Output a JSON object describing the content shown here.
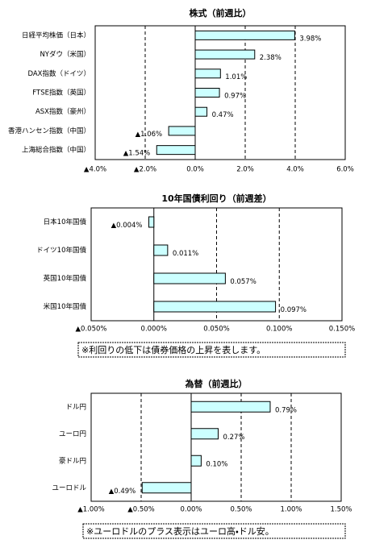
{
  "chart_data": [
    {
      "type": "hbar",
      "title": "株式（前週比）",
      "categories": [
        "日経平均株価（日本）",
        "NYダウ（米国）",
        "DAX指数（ドイツ）",
        "FTSE指数（英国）",
        "ASX指数（豪州）",
        "香港ハンセン指数（中国）",
        "上海総合指数（中国）"
      ],
      "values": [
        3.98,
        2.38,
        1.01,
        0.97,
        0.47,
        -1.06,
        -1.54
      ],
      "value_labels": [
        "3.98%",
        "2.38%",
        "1.01%",
        "0.97%",
        "0.47%",
        "▲1.06%",
        "▲1.54%"
      ],
      "xlim": [
        -4,
        6
      ],
      "xticks": [
        {
          "value": -4,
          "label": "▲4.0%"
        },
        {
          "value": -2,
          "label": "▲2.0%"
        },
        {
          "value": 0,
          "label": "0.0%"
        },
        {
          "value": 2,
          "label": "2.0%"
        },
        {
          "value": 4,
          "label": "4.0%"
        },
        {
          "value": 6,
          "label": "6.0%"
        }
      ],
      "grid": true,
      "color": "#ccffff",
      "negative_color": "#ff0000"
    },
    {
      "type": "hbar",
      "title": "10年国債利回り（前週差）",
      "categories": [
        "日本10年国債",
        "ドイツ10年国債",
        "英国10年国債",
        "米国10年国債"
      ],
      "values": [
        -0.004,
        0.011,
        0.057,
        0.097
      ],
      "value_labels": [
        "▲0.004%",
        "0.011%",
        "0.057%",
        "0.097%"
      ],
      "xlim": [
        -0.05,
        0.15
      ],
      "xticks": [
        {
          "value": -0.05,
          "label": "▲0.050%"
        },
        {
          "value": 0,
          "label": "0.000%"
        },
        {
          "value": 0.05,
          "label": "0.050%"
        },
        {
          "value": 0.1,
          "label": "0.100%"
        },
        {
          "value": 0.15,
          "label": "0.150%"
        }
      ],
      "grid": true,
      "color": "#ccffff",
      "negative_color": "#ff0000",
      "note": "※利回りの低下は債券価格の上昇を表します。"
    },
    {
      "type": "hbar",
      "title": "為替（前週比）",
      "categories": [
        "ドル円",
        "ユーロ円",
        "豪ドル円",
        "ユーロドル"
      ],
      "values": [
        0.79,
        0.27,
        0.1,
        -0.49
      ],
      "value_labels": [
        "0.79%",
        "0.27%",
        "0.10%",
        "▲0.49%"
      ],
      "xlim": [
        -1,
        1.5
      ],
      "xticks": [
        {
          "value": -1,
          "label": "▲1.00%"
        },
        {
          "value": -0.5,
          "label": "▲0.50%"
        },
        {
          "value": 0,
          "label": "0.00%"
        },
        {
          "value": 0.5,
          "label": "0.50%"
        },
        {
          "value": 1,
          "label": "1.00%"
        },
        {
          "value": 1.5,
          "label": "1.50%"
        }
      ],
      "grid": true,
      "color": "#ccffff",
      "negative_color": "#ff0000",
      "note": "※ユーロドルのプラス表示はユーロ高・ドル安。"
    }
  ]
}
